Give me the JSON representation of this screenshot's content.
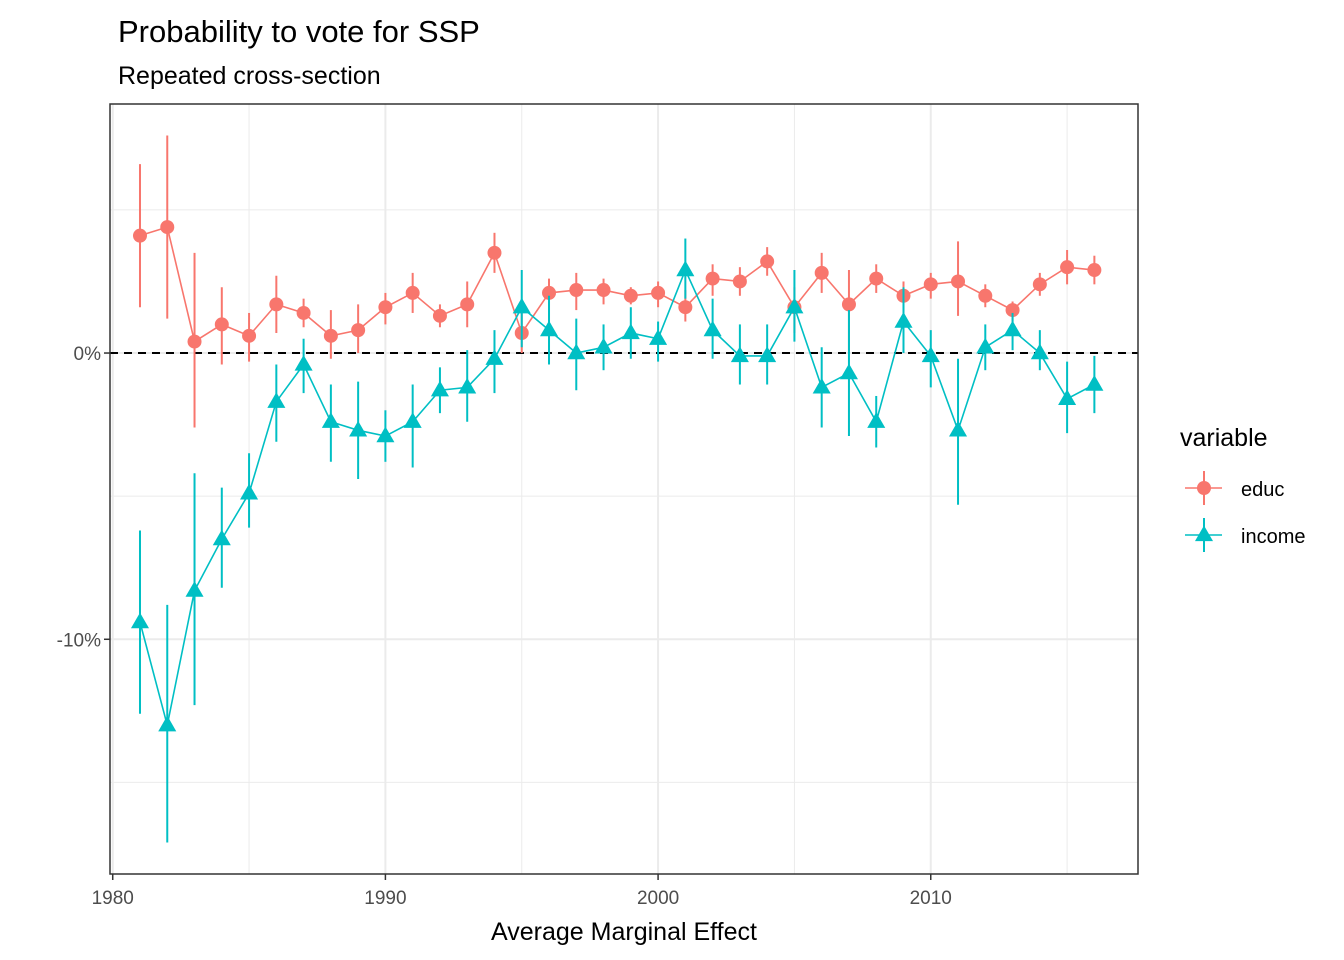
{
  "chart_data": {
    "type": "line",
    "title": "Probability to vote for SSP",
    "subtitle": "Repeated cross-section",
    "xlabel": "Average Marginal Effect",
    "ylabel": "",
    "xlim": [
      1979.9,
      2017.6
    ],
    "ylim": [
      -18.2,
      8.7
    ],
    "x_ticks": [
      1980,
      1990,
      2000,
      2010
    ],
    "x_tick_labels": [
      "1980",
      "1990",
      "2000",
      "2010"
    ],
    "y_ticks": [
      0,
      -10
    ],
    "y_tick_labels": [
      "0%",
      "-10%"
    ],
    "y_minor_gridlines": [
      5,
      -5,
      -15
    ],
    "x_minor_gridlines": [
      1985,
      1995,
      2005,
      2015
    ],
    "reference_line": {
      "y": 0,
      "style": "dashed"
    },
    "grid": true,
    "legend": {
      "title": "variable",
      "position": "right"
    },
    "x": [
      1981,
      1982,
      1983,
      1984,
      1985,
      1986,
      1987,
      1988,
      1989,
      1990,
      1991,
      1992,
      1993,
      1994,
      1995,
      1996,
      1997,
      1998,
      1999,
      2000,
      2001,
      2002,
      2003,
      2004,
      2005,
      2006,
      2007,
      2008,
      2009,
      2010,
      2011,
      2012,
      2013,
      2014,
      2015,
      2016
    ],
    "series": [
      {
        "name": "educ",
        "color": "#F8766D",
        "marker": "circle",
        "values": [
          4.1,
          4.4,
          0.4,
          1.0,
          0.6,
          1.7,
          1.4,
          0.6,
          0.8,
          1.6,
          2.1,
          1.3,
          1.7,
          3.5,
          0.7,
          2.1,
          2.2,
          2.2,
          2.0,
          2.1,
          1.6,
          2.6,
          2.5,
          3.2,
          1.6,
          2.8,
          1.7,
          2.6,
          2.0,
          2.4,
          2.5,
          2.0,
          1.5,
          2.4,
          3.0,
          2.9
        ],
        "lower": [
          1.6,
          1.2,
          -2.6,
          -0.4,
          -0.3,
          0.7,
          0.9,
          -0.2,
          0.0,
          1.0,
          1.4,
          0.9,
          0.9,
          2.8,
          0.0,
          1.5,
          1.5,
          1.7,
          1.7,
          1.6,
          1.1,
          2.0,
          2.0,
          2.7,
          0.7,
          2.1,
          0.0,
          2.1,
          1.5,
          1.9,
          1.3,
          1.6,
          1.1,
          2.0,
          2.4,
          2.4
        ],
        "upper": [
          6.6,
          7.6,
          3.5,
          2.3,
          1.4,
          2.7,
          1.9,
          1.5,
          1.7,
          2.1,
          2.8,
          1.7,
          2.5,
          4.2,
          1.5,
          2.6,
          2.8,
          2.6,
          2.3,
          2.5,
          2.2,
          3.1,
          3.0,
          3.7,
          2.3,
          3.5,
          2.9,
          3.1,
          2.5,
          2.8,
          3.9,
          2.4,
          1.8,
          2.8,
          3.6,
          3.4
        ]
      },
      {
        "name": "income",
        "color": "#00BFC4",
        "marker": "triangle",
        "values": [
          -9.4,
          -13.0,
          -8.3,
          -6.5,
          -4.9,
          -1.7,
          -0.4,
          -2.4,
          -2.7,
          -2.9,
          -2.4,
          -1.3,
          -1.2,
          -0.2,
          1.6,
          0.8,
          0.0,
          0.2,
          0.7,
          0.5,
          2.9,
          0.8,
          -0.1,
          -0.1,
          1.6,
          -1.2,
          -0.7,
          -2.4,
          1.1,
          -0.1,
          -2.7,
          0.2,
          0.8,
          0.0,
          -1.6,
          -1.1
        ],
        "lower": [
          -12.6,
          -17.1,
          -12.3,
          -8.2,
          -6.1,
          -3.1,
          -1.4,
          -3.8,
          -4.4,
          -3.8,
          -4.0,
          -2.1,
          -2.4,
          -1.4,
          0.2,
          -0.4,
          -1.3,
          -0.6,
          -0.2,
          -0.3,
          1.9,
          -0.2,
          -1.1,
          -1.1,
          0.4,
          -2.6,
          -2.9,
          -3.3,
          0.0,
          -1.2,
          -5.3,
          -0.6,
          0.1,
          -0.6,
          -2.8,
          -2.1
        ],
        "upper": [
          -6.2,
          -8.8,
          -4.2,
          -4.7,
          -3.5,
          -0.4,
          0.5,
          -1.1,
          -1.0,
          -2.0,
          -1.1,
          -0.5,
          0.1,
          0.8,
          2.9,
          2.0,
          1.2,
          1.0,
          1.6,
          1.1,
          4.0,
          1.9,
          1.0,
          1.0,
          2.9,
          0.2,
          1.5,
          -1.5,
          2.3,
          0.8,
          -0.2,
          1.0,
          1.4,
          0.8,
          -0.3,
          -0.1
        ]
      }
    ]
  }
}
